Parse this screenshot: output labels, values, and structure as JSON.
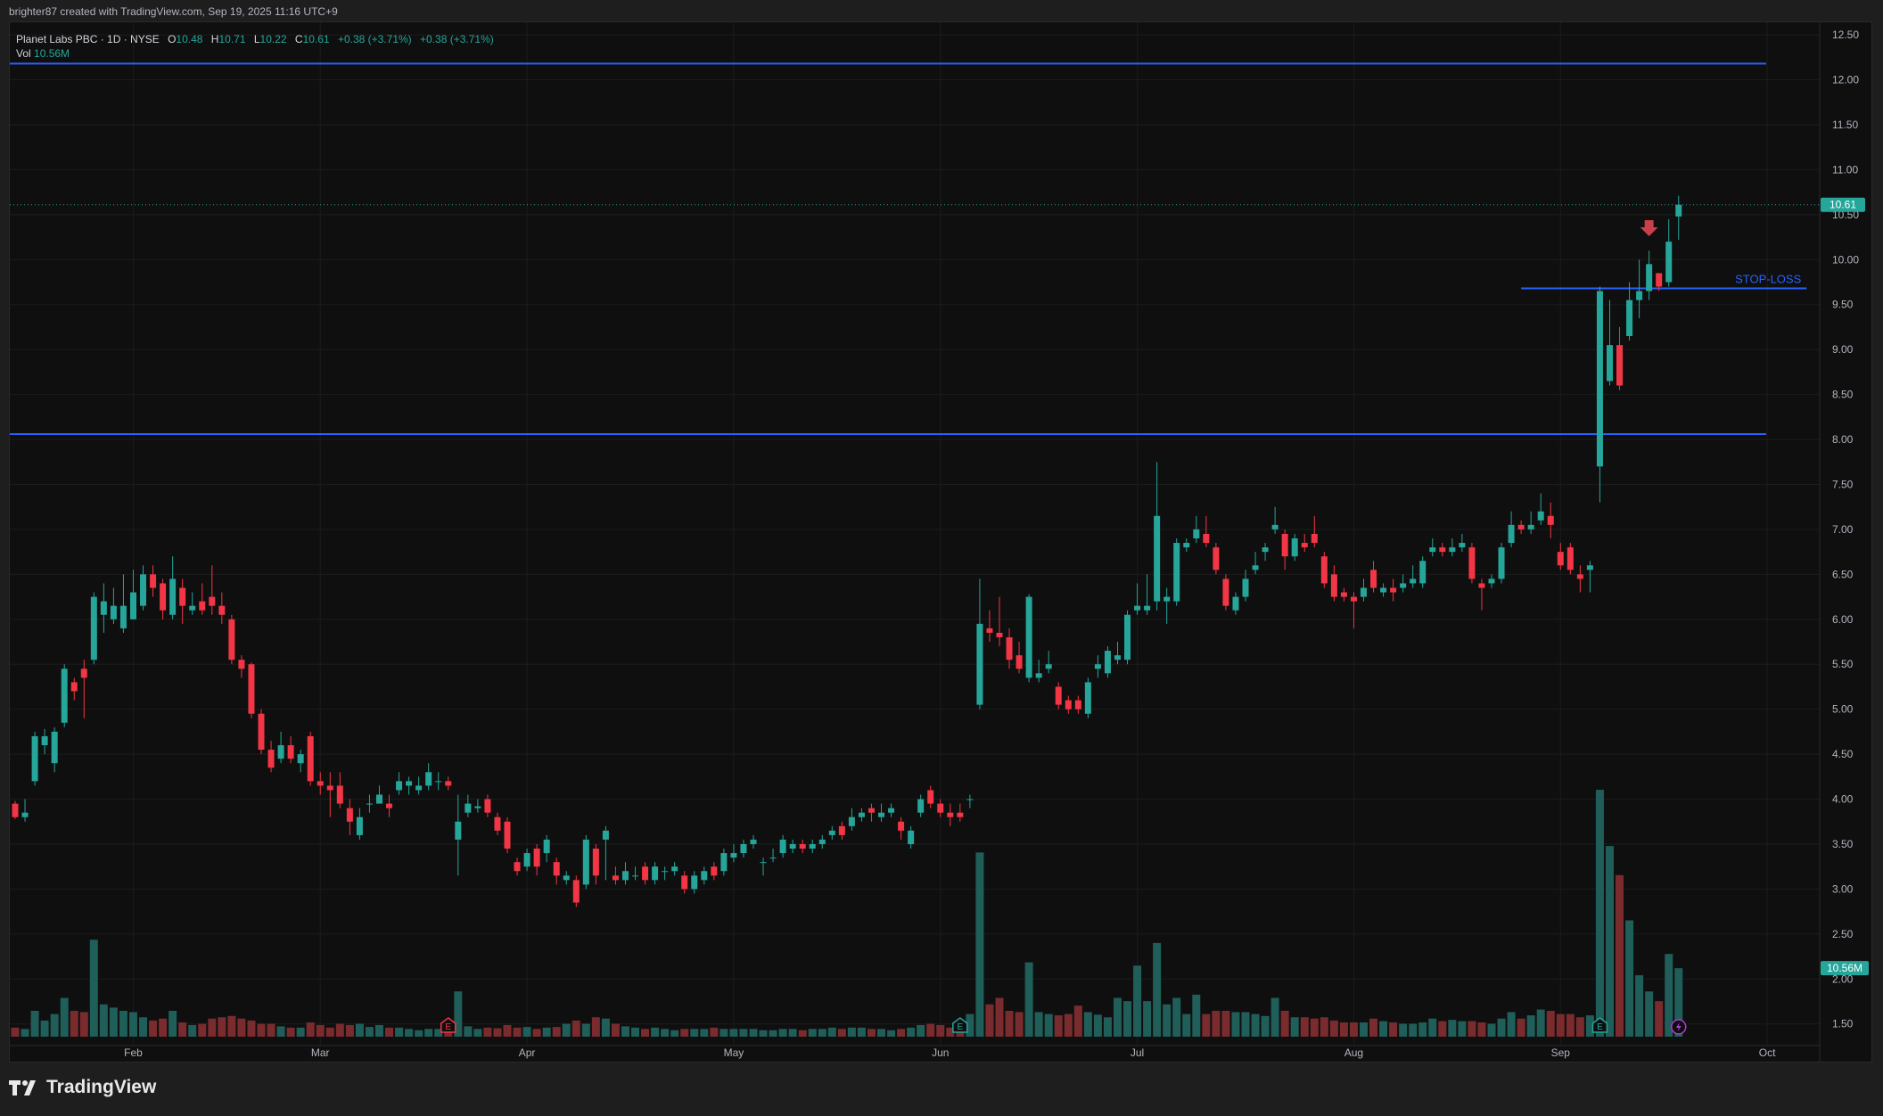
{
  "credit": "brighter87 created with TradingView.com, Sep 19, 2025 11:16 UTC+9",
  "legend": {
    "symbol": "Planet Labs PBC · 1D · NYSE",
    "o_label": "O",
    "o": "10.48",
    "h_label": "H",
    "h": "10.71",
    "l_label": "L",
    "l": "10.22",
    "c_label": "C",
    "c": "10.61",
    "chg": "+0.38 (+3.71%)",
    "chg2": "+0.38 (+3.71%)",
    "vol_label": "Vol",
    "vol": "10.56M"
  },
  "brand": "TradingView",
  "colors": {
    "up": "#26a69a",
    "down": "#f23645",
    "vol_up": "#1f5e59",
    "vol_down": "#7a2b2e",
    "hline": "#2962ff",
    "bg": "#0f0f0f",
    "grid": "#1c1c1c"
  },
  "chart_data": {
    "type": "candlestick",
    "ylim": [
      1.2,
      12.6
    ],
    "yticks": [
      "12.50",
      "12.00",
      "11.50",
      "11.00",
      "10.50",
      "10.00",
      "9.50",
      "9.00",
      "8.50",
      "8.00",
      "7.50",
      "7.00",
      "6.50",
      "6.00",
      "5.50",
      "5.00",
      "4.50",
      "4.00",
      "3.50",
      "3.00",
      "2.50",
      "2.00",
      "1.50"
    ],
    "xticks": [
      {
        "label": "Feb",
        "index": 12
      },
      {
        "label": "Mar",
        "index": 31
      },
      {
        "label": "Apr",
        "index": 52
      },
      {
        "label": "May",
        "index": 73
      },
      {
        "label": "Jun",
        "index": 94
      },
      {
        "label": "Jul",
        "index": 114
      },
      {
        "label": "Aug",
        "index": 136
      },
      {
        "label": "Sep",
        "index": 157
      },
      {
        "label": "Oct",
        "index": 178
      }
    ],
    "last_price": "10.61",
    "last_volume": "10.56M",
    "hlines": [
      {
        "price": 12.18,
        "from": 0,
        "to": 185
      },
      {
        "price": 8.06,
        "from": 0,
        "to": 185
      },
      {
        "price": 9.68,
        "from": 153,
        "to": 182,
        "label": "STOP-LOSS"
      }
    ],
    "arrow": {
      "index": 166,
      "price": 10.3
    },
    "earnings": [
      {
        "index": 44,
        "kind": "down"
      },
      {
        "index": 96,
        "kind": "up"
      },
      {
        "index": 161,
        "kind": "up"
      }
    ],
    "dividend": {
      "index": 169
    },
    "candles": [
      [
        0,
        3.95,
        3.8,
        3.98,
        3.78,
        0.14
      ],
      [
        1,
        3.8,
        3.85,
        4.0,
        3.75,
        0.12
      ],
      [
        2,
        4.2,
        4.7,
        4.75,
        4.15,
        0.4
      ],
      [
        3,
        4.6,
        4.7,
        4.78,
        4.5,
        0.25
      ],
      [
        4,
        4.4,
        4.75,
        4.8,
        4.3,
        0.35
      ],
      [
        5,
        4.85,
        5.45,
        5.5,
        4.8,
        0.6
      ],
      [
        6,
        5.3,
        5.2,
        5.35,
        5.1,
        0.4
      ],
      [
        7,
        5.45,
        5.35,
        5.55,
        4.9,
        0.38
      ],
      [
        8,
        5.55,
        6.25,
        6.3,
        5.5,
        1.5
      ],
      [
        9,
        6.05,
        6.2,
        6.4,
        5.85,
        0.5
      ],
      [
        10,
        6.0,
        6.15,
        6.35,
        5.95,
        0.45
      ],
      [
        11,
        5.9,
        6.15,
        6.5,
        5.85,
        0.4
      ],
      [
        12,
        6.0,
        6.3,
        6.55,
        6.0,
        0.38
      ],
      [
        13,
        6.15,
        6.5,
        6.6,
        6.1,
        0.3
      ],
      [
        14,
        6.5,
        6.35,
        6.6,
        6.25,
        0.25
      ],
      [
        15,
        6.4,
        6.1,
        6.45,
        6.0,
        0.28
      ],
      [
        16,
        6.05,
        6.45,
        6.7,
        6.0,
        0.4
      ],
      [
        17,
        6.35,
        6.15,
        6.45,
        5.95,
        0.22
      ],
      [
        18,
        6.1,
        6.15,
        6.3,
        6.05,
        0.18
      ],
      [
        19,
        6.2,
        6.1,
        6.4,
        6.05,
        0.2
      ],
      [
        20,
        6.25,
        6.15,
        6.6,
        6.05,
        0.28
      ],
      [
        21,
        6.15,
        6.05,
        6.3,
        5.95,
        0.3
      ],
      [
        22,
        6.0,
        5.55,
        6.05,
        5.5,
        0.32
      ],
      [
        23,
        5.55,
        5.45,
        5.6,
        5.35,
        0.28
      ],
      [
        24,
        5.5,
        4.95,
        5.52,
        4.9,
        0.25
      ],
      [
        25,
        4.95,
        4.55,
        5.0,
        4.5,
        0.2
      ],
      [
        26,
        4.55,
        4.35,
        4.65,
        4.3,
        0.2
      ],
      [
        27,
        4.45,
        4.6,
        4.75,
        4.4,
        0.16
      ],
      [
        28,
        4.6,
        4.45,
        4.7,
        4.4,
        0.14
      ],
      [
        29,
        4.4,
        4.5,
        4.55,
        4.3,
        0.14
      ],
      [
        30,
        4.7,
        4.2,
        4.75,
        4.15,
        0.22
      ],
      [
        31,
        4.2,
        4.15,
        4.3,
        4.05,
        0.18
      ],
      [
        32,
        4.15,
        4.1,
        4.3,
        3.8,
        0.14
      ],
      [
        33,
        4.15,
        3.95,
        4.3,
        3.9,
        0.2
      ],
      [
        34,
        3.9,
        3.75,
        4.0,
        3.6,
        0.18
      ],
      [
        35,
        3.6,
        3.8,
        3.9,
        3.55,
        0.2
      ],
      [
        36,
        3.95,
        3.95,
        4.05,
        3.85,
        0.15
      ],
      [
        37,
        3.95,
        4.05,
        4.15,
        3.95,
        0.18
      ],
      [
        38,
        3.95,
        3.9,
        4.05,
        3.8,
        0.14
      ],
      [
        39,
        4.1,
        4.2,
        4.3,
        4.05,
        0.14
      ],
      [
        40,
        4.15,
        4.2,
        4.25,
        4.05,
        0.12
      ],
      [
        41,
        4.1,
        4.15,
        4.25,
        4.05,
        0.1
      ],
      [
        42,
        4.15,
        4.3,
        4.4,
        4.1,
        0.12
      ],
      [
        43,
        4.2,
        4.2,
        4.3,
        4.1,
        0.12
      ],
      [
        44,
        4.2,
        4.15,
        4.25,
        4.1,
        0.14
      ],
      [
        45,
        3.55,
        3.75,
        4.05,
        3.15,
        0.7
      ],
      [
        46,
        3.85,
        3.95,
        4.05,
        3.8,
        0.16
      ],
      [
        47,
        3.9,
        3.92,
        4.0,
        3.85,
        0.12
      ],
      [
        48,
        4.0,
        3.85,
        4.05,
        3.8,
        0.14
      ],
      [
        49,
        3.8,
        3.65,
        3.85,
        3.6,
        0.13
      ],
      [
        50,
        3.75,
        3.45,
        3.8,
        3.4,
        0.18
      ],
      [
        51,
        3.3,
        3.2,
        3.35,
        3.15,
        0.14
      ],
      [
        52,
        3.25,
        3.4,
        3.45,
        3.2,
        0.15
      ],
      [
        53,
        3.45,
        3.25,
        3.5,
        3.15,
        0.12
      ],
      [
        54,
        3.4,
        3.55,
        3.6,
        3.3,
        0.14
      ],
      [
        55,
        3.3,
        3.15,
        3.35,
        3.05,
        0.15
      ],
      [
        56,
        3.1,
        3.15,
        3.2,
        3.05,
        0.2
      ],
      [
        57,
        3.1,
        2.85,
        3.15,
        2.8,
        0.25
      ],
      [
        58,
        3.05,
        3.55,
        3.6,
        3.0,
        0.2
      ],
      [
        59,
        3.45,
        3.15,
        3.5,
        3.05,
        0.3
      ],
      [
        60,
        3.55,
        3.65,
        3.7,
        3.1,
        0.28
      ],
      [
        61,
        3.15,
        3.1,
        3.25,
        3.05,
        0.2
      ],
      [
        62,
        3.1,
        3.2,
        3.3,
        3.05,
        0.16
      ],
      [
        63,
        3.15,
        3.15,
        3.25,
        3.1,
        0.14
      ],
      [
        64,
        3.25,
        3.1,
        3.3,
        3.05,
        0.12
      ],
      [
        65,
        3.1,
        3.25,
        3.3,
        3.05,
        0.14
      ],
      [
        66,
        3.2,
        3.2,
        3.25,
        3.1,
        0.12
      ],
      [
        67,
        3.2,
        3.25,
        3.3,
        3.15,
        0.1
      ],
      [
        68,
        3.15,
        3.0,
        3.2,
        2.95,
        0.12
      ],
      [
        69,
        3.0,
        3.15,
        3.2,
        2.95,
        0.12
      ],
      [
        70,
        3.1,
        3.2,
        3.25,
        3.05,
        0.12
      ],
      [
        71,
        3.25,
        3.15,
        3.3,
        3.1,
        0.14
      ],
      [
        72,
        3.2,
        3.4,
        3.45,
        3.15,
        0.12
      ],
      [
        73,
        3.35,
        3.4,
        3.5,
        3.3,
        0.12
      ],
      [
        74,
        3.4,
        3.5,
        3.55,
        3.35,
        0.12
      ],
      [
        75,
        3.5,
        3.55,
        3.6,
        3.45,
        0.12
      ],
      [
        76,
        3.3,
        3.3,
        3.35,
        3.15,
        0.1
      ],
      [
        77,
        3.35,
        3.35,
        3.45,
        3.3,
        0.1
      ],
      [
        78,
        3.4,
        3.55,
        3.6,
        3.35,
        0.12
      ],
      [
        79,
        3.45,
        3.5,
        3.55,
        3.4,
        0.12
      ],
      [
        80,
        3.5,
        3.45,
        3.55,
        3.4,
        0.1
      ],
      [
        81,
        3.45,
        3.5,
        3.55,
        3.4,
        0.12
      ],
      [
        82,
        3.5,
        3.55,
        3.6,
        3.45,
        0.12
      ],
      [
        83,
        3.6,
        3.65,
        3.7,
        3.55,
        0.14
      ],
      [
        84,
        3.7,
        3.6,
        3.75,
        3.55,
        0.12
      ],
      [
        85,
        3.7,
        3.8,
        3.9,
        3.65,
        0.14
      ],
      [
        86,
        3.8,
        3.85,
        3.9,
        3.75,
        0.14
      ],
      [
        87,
        3.9,
        3.85,
        3.95,
        3.75,
        0.12
      ],
      [
        88,
        3.8,
        3.85,
        3.95,
        3.75,
        0.12
      ],
      [
        89,
        3.85,
        3.9,
        3.95,
        3.8,
        0.1
      ],
      [
        90,
        3.75,
        3.65,
        3.8,
        3.55,
        0.12
      ],
      [
        91,
        3.5,
        3.65,
        3.7,
        3.45,
        0.14
      ],
      [
        92,
        3.85,
        4.0,
        4.05,
        3.8,
        0.18
      ],
      [
        93,
        4.1,
        3.95,
        4.15,
        3.9,
        0.2
      ],
      [
        94,
        3.95,
        3.85,
        4.0,
        3.8,
        0.18
      ],
      [
        95,
        3.85,
        3.8,
        3.95,
        3.7,
        0.14
      ],
      [
        96,
        3.85,
        3.8,
        3.95,
        3.75,
        0.15
      ],
      [
        97,
        4.0,
        4.0,
        4.05,
        3.9,
        0.35
      ],
      [
        98,
        5.05,
        5.95,
        6.45,
        5.0,
        2.85
      ],
      [
        99,
        5.9,
        5.85,
        6.1,
        5.75,
        0.5
      ],
      [
        100,
        5.85,
        5.8,
        6.25,
        5.7,
        0.6
      ],
      [
        101,
        5.8,
        5.55,
        5.9,
        5.45,
        0.4
      ],
      [
        102,
        5.6,
        5.45,
        5.75,
        5.4,
        0.38
      ],
      [
        103,
        5.35,
        6.25,
        6.28,
        5.3,
        1.15
      ],
      [
        104,
        5.35,
        5.4,
        5.55,
        5.3,
        0.38
      ],
      [
        105,
        5.45,
        5.5,
        5.65,
        5.4,
        0.35
      ],
      [
        106,
        5.25,
        5.05,
        5.3,
        5.0,
        0.33
      ],
      [
        107,
        5.1,
        5.0,
        5.15,
        4.95,
        0.35
      ],
      [
        108,
        5.1,
        5.0,
        5.15,
        4.95,
        0.48
      ],
      [
        109,
        4.95,
        5.3,
        5.35,
        4.9,
        0.38
      ],
      [
        110,
        5.45,
        5.5,
        5.6,
        5.35,
        0.34
      ],
      [
        111,
        5.4,
        5.65,
        5.7,
        5.35,
        0.3
      ],
      [
        112,
        5.55,
        5.6,
        5.75,
        5.5,
        0.6
      ],
      [
        113,
        5.55,
        6.05,
        6.1,
        5.5,
        0.55
      ],
      [
        114,
        6.1,
        6.15,
        6.4,
        6.05,
        1.1
      ],
      [
        115,
        6.1,
        6.15,
        6.5,
        6.05,
        0.55
      ],
      [
        116,
        6.2,
        7.15,
        7.75,
        6.1,
        1.45
      ],
      [
        117,
        6.2,
        6.25,
        6.35,
        5.95,
        0.5
      ],
      [
        118,
        6.2,
        6.85,
        6.9,
        6.15,
        0.6
      ],
      [
        119,
        6.8,
        6.85,
        6.9,
        6.75,
        0.35
      ],
      [
        120,
        6.9,
        7.0,
        7.15,
        6.85,
        0.65
      ],
      [
        121,
        6.95,
        6.85,
        7.15,
        6.8,
        0.35
      ],
      [
        122,
        6.8,
        6.55,
        6.85,
        6.5,
        0.4
      ],
      [
        123,
        6.45,
        6.15,
        6.5,
        6.1,
        0.4
      ],
      [
        124,
        6.1,
        6.25,
        6.3,
        6.05,
        0.38
      ],
      [
        125,
        6.25,
        6.45,
        6.55,
        6.2,
        0.38
      ],
      [
        126,
        6.55,
        6.6,
        6.75,
        6.5,
        0.35
      ],
      [
        127,
        6.75,
        6.8,
        6.85,
        6.65,
        0.32
      ],
      [
        128,
        7.0,
        7.05,
        7.25,
        6.95,
        0.6
      ],
      [
        129,
        6.95,
        6.7,
        7.0,
        6.55,
        0.4
      ],
      [
        130,
        6.7,
        6.9,
        6.95,
        6.65,
        0.3
      ],
      [
        131,
        6.85,
        6.8,
        6.95,
        6.75,
        0.3
      ],
      [
        132,
        6.95,
        6.85,
        7.15,
        6.8,
        0.28
      ],
      [
        133,
        6.7,
        6.4,
        6.75,
        6.35,
        0.3
      ],
      [
        134,
        6.5,
        6.25,
        6.6,
        6.2,
        0.25
      ],
      [
        135,
        6.3,
        6.25,
        6.35,
        6.2,
        0.22
      ],
      [
        136,
        6.25,
        6.2,
        6.3,
        5.9,
        0.22
      ],
      [
        137,
        6.25,
        6.35,
        6.45,
        6.2,
        0.22
      ],
      [
        138,
        6.55,
        6.35,
        6.65,
        6.3,
        0.28
      ],
      [
        139,
        6.3,
        6.35,
        6.4,
        6.25,
        0.24
      ],
      [
        140,
        6.35,
        6.3,
        6.45,
        6.2,
        0.22
      ],
      [
        141,
        6.35,
        6.4,
        6.5,
        6.3,
        0.2
      ],
      [
        142,
        6.4,
        6.45,
        6.6,
        6.35,
        0.2
      ],
      [
        143,
        6.4,
        6.65,
        6.7,
        6.35,
        0.22
      ],
      [
        144,
        6.75,
        6.8,
        6.9,
        6.7,
        0.28
      ],
      [
        145,
        6.8,
        6.75,
        6.85,
        6.7,
        0.24
      ],
      [
        146,
        6.75,
        6.8,
        6.9,
        6.7,
        0.26
      ],
      [
        147,
        6.8,
        6.85,
        6.95,
        6.75,
        0.24
      ],
      [
        148,
        6.8,
        6.45,
        6.85,
        6.4,
        0.24
      ],
      [
        149,
        6.4,
        6.35,
        6.45,
        6.1,
        0.22
      ],
      [
        150,
        6.4,
        6.45,
        6.5,
        6.35,
        0.2
      ],
      [
        151,
        6.45,
        6.8,
        6.85,
        6.4,
        0.28
      ],
      [
        152,
        6.85,
        7.05,
        7.2,
        6.8,
        0.38
      ],
      [
        153,
        7.05,
        7.0,
        7.1,
        6.95,
        0.28
      ],
      [
        154,
        7.0,
        7.05,
        7.2,
        6.95,
        0.33
      ],
      [
        155,
        7.1,
        7.2,
        7.4,
        7.05,
        0.42
      ],
      [
        156,
        7.15,
        7.05,
        7.3,
        6.9,
        0.4
      ],
      [
        157,
        6.75,
        6.6,
        6.85,
        6.55,
        0.35
      ],
      [
        158,
        6.8,
        6.55,
        6.85,
        6.5,
        0.35
      ],
      [
        159,
        6.5,
        6.45,
        6.6,
        6.3,
        0.3
      ],
      [
        160,
        6.55,
        6.6,
        6.65,
        6.3,
        0.33
      ],
      [
        161,
        7.7,
        9.65,
        9.7,
        7.3,
        3.82
      ],
      [
        162,
        8.65,
        9.05,
        9.55,
        8.6,
        2.95
      ],
      [
        163,
        9.05,
        8.6,
        9.25,
        8.55,
        2.5
      ],
      [
        164,
        9.15,
        9.55,
        9.75,
        9.1,
        1.8
      ],
      [
        165,
        9.55,
        9.65,
        10.0,
        9.35,
        0.95
      ],
      [
        166,
        9.65,
        9.95,
        10.1,
        9.55,
        0.7
      ],
      [
        167,
        9.85,
        9.7,
        9.85,
        9.65,
        0.55
      ],
      [
        168,
        9.75,
        10.2,
        10.45,
        9.7,
        1.28
      ],
      [
        169,
        10.48,
        10.61,
        10.71,
        10.22,
        1.06
      ]
    ]
  }
}
